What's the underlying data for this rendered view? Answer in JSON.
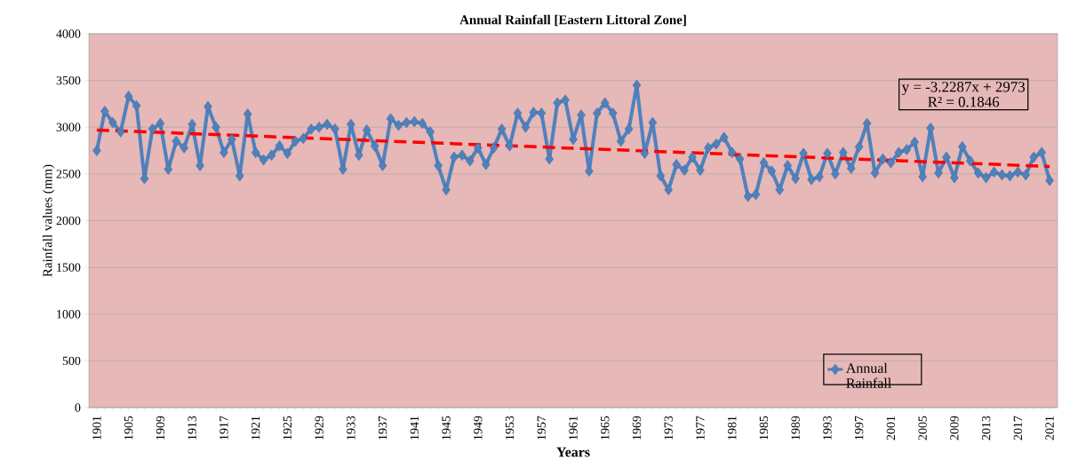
{
  "chart_data": {
    "type": "line",
    "title": "Annual Rainfall [Eastern Littoral Zone]",
    "xlabel": "Years",
    "ylabel": "Rainfall values (mm)",
    "x": [
      1901,
      1902,
      1903,
      1904,
      1905,
      1906,
      1907,
      1908,
      1909,
      1910,
      1911,
      1912,
      1913,
      1914,
      1915,
      1916,
      1917,
      1918,
      1919,
      1920,
      1921,
      1922,
      1923,
      1924,
      1925,
      1926,
      1927,
      1928,
      1929,
      1930,
      1931,
      1932,
      1933,
      1934,
      1935,
      1936,
      1937,
      1938,
      1939,
      1940,
      1941,
      1942,
      1943,
      1944,
      1945,
      1946,
      1947,
      1948,
      1949,
      1950,
      1951,
      1952,
      1953,
      1954,
      1955,
      1956,
      1957,
      1958,
      1959,
      1960,
      1961,
      1962,
      1963,
      1964,
      1965,
      1966,
      1967,
      1968,
      1969,
      1970,
      1971,
      1972,
      1973,
      1974,
      1975,
      1976,
      1977,
      1978,
      1979,
      1980,
      1981,
      1982,
      1983,
      1984,
      1985,
      1986,
      1987,
      1988,
      1989,
      1990,
      1991,
      1992,
      1993,
      1994,
      1995,
      1996,
      1997,
      1998,
      1999,
      2000,
      2001,
      2002,
      2003,
      2004,
      2005,
      2006,
      2007,
      2008,
      2009,
      2010,
      2011,
      2012,
      2013,
      2014,
      2015,
      2016,
      2017,
      2018,
      2019,
      2020,
      2021
    ],
    "series": [
      {
        "name": "Annual Rainfall",
        "color": "#4f81bd",
        "marker": "diamond",
        "values": [
          2750,
          3170,
          3050,
          2950,
          3330,
          3230,
          2450,
          2980,
          3040,
          2550,
          2850,
          2780,
          3030,
          2590,
          3220,
          3000,
          2730,
          2870,
          2480,
          3140,
          2730,
          2650,
          2700,
          2800,
          2720,
          2850,
          2880,
          2980,
          3000,
          3030,
          2980,
          2550,
          3030,
          2700,
          2970,
          2800,
          2590,
          3090,
          3020,
          3050,
          3060,
          3040,
          2950,
          2590,
          2330,
          2680,
          2700,
          2640,
          2780,
          2600,
          2780,
          2980,
          2800,
          3150,
          3000,
          3160,
          3150,
          2660,
          3260,
          3290,
          2870,
          3130,
          2530,
          3150,
          3260,
          3150,
          2850,
          2980,
          3450,
          2720,
          3050,
          2480,
          2330,
          2600,
          2540,
          2680,
          2540,
          2780,
          2820,
          2890,
          2730,
          2660,
          2260,
          2280,
          2620,
          2530,
          2330,
          2590,
          2450,
          2720,
          2440,
          2470,
          2720,
          2500,
          2730,
          2560,
          2790,
          3040,
          2510,
          2660,
          2620,
          2730,
          2760,
          2840,
          2470,
          2990,
          2510,
          2680,
          2460,
          2790,
          2640,
          2510,
          2460,
          2520,
          2490,
          2480,
          2520,
          2490,
          2680,
          2730,
          2430
        ]
      },
      {
        "type": "line",
        "color": "#ff0000",
        "line_style": "dashed",
        "marker": "none",
        "x": [
          1901,
          2021
        ],
        "values": [
          2970,
          2580
        ]
      }
    ],
    "annotations": [
      "y = -3.2287x  + 2973",
      "R² = 0.1846"
    ],
    "xlim": [
      1900,
      2022
    ],
    "xticks": [
      1901,
      1905,
      1909,
      1913,
      1917,
      1921,
      1925,
      1929,
      1933,
      1937,
      1941,
      1945,
      1949,
      1953,
      1957,
      1961,
      1965,
      1969,
      1973,
      1977,
      1981,
      1985,
      1989,
      1993,
      1997,
      2001,
      2005,
      2009,
      2013,
      2017,
      2021
    ],
    "ylim": [
      0,
      4000
    ],
    "yticks": [
      0,
      500,
      1000,
      1500,
      2000,
      2500,
      3000,
      3500,
      4000
    ],
    "grid": "y",
    "legend": "bottom right"
  }
}
